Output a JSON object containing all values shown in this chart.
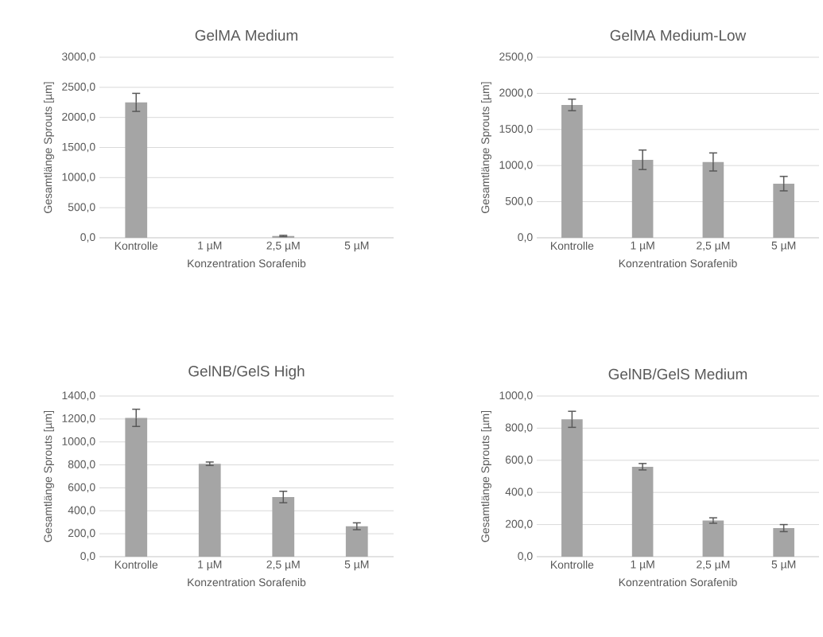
{
  "chart_data": [
    {
      "type": "bar",
      "title": "GelMA Medium",
      "xlabel": "Konzentration Sorafenib",
      "ylabel": "Gesamtlänge Sprouts [µm]",
      "categories": [
        "Kontrolle",
        "1 µM",
        "2,5 µM",
        "5 µM"
      ],
      "values": [
        2250,
        0,
        30,
        0
      ],
      "errors": [
        150,
        null,
        10,
        null
      ],
      "color": "#a5a5a5",
      "ylim": [
        0,
        3000
      ],
      "yticks": [
        {
          "value": 0,
          "label": "0,0"
        },
        {
          "value": 500,
          "label": "500,0"
        },
        {
          "value": 1000,
          "label": "1000,0"
        },
        {
          "value": 1500,
          "label": "1500,0"
        },
        {
          "value": 2000,
          "label": "2000,0"
        },
        {
          "value": 2500,
          "label": "2500,0"
        },
        {
          "value": 3000,
          "label": "3000,0"
        }
      ],
      "grid": "y"
    },
    {
      "type": "bar",
      "title": "GelMA Medium-Low",
      "xlabel": "Konzentration Sorafenib",
      "ylabel": "Gesamtlänge Sprouts [µm]",
      "categories": [
        "Kontrolle",
        "1 µM",
        "2,5 µM",
        "5 µM"
      ],
      "values": [
        1840,
        1080,
        1050,
        750
      ],
      "errors": [
        80,
        135,
        125,
        100
      ],
      "color": "#a5a5a5",
      "ylim": [
        0,
        2500
      ],
      "yticks": [
        {
          "value": 0,
          "label": "0,0"
        },
        {
          "value": 500,
          "label": "500,0"
        },
        {
          "value": 1000,
          "label": "1000,0"
        },
        {
          "value": 1500,
          "label": "1500,0"
        },
        {
          "value": 2000,
          "label": "2000,0"
        },
        {
          "value": 2500,
          "label": "2500,0"
        }
      ],
      "grid": "y"
    },
    {
      "type": "bar",
      "title": "GelNB/GelS High",
      "xlabel": "Konzentration Sorafenib",
      "ylabel": "Gesamtlänge Sprouts [µm]",
      "categories": [
        "Kontrolle",
        "1 µM",
        "2,5 µM",
        "5 µM"
      ],
      "values": [
        1210,
        810,
        520,
        265
      ],
      "errors": [
        75,
        15,
        50,
        30
      ],
      "color": "#a5a5a5",
      "ylim": [
        0,
        1400
      ],
      "yticks": [
        {
          "value": 0,
          "label": "0,0"
        },
        {
          "value": 200,
          "label": "200,0"
        },
        {
          "value": 400,
          "label": "400,0"
        },
        {
          "value": 600,
          "label": "600,0"
        },
        {
          "value": 800,
          "label": "800,0"
        },
        {
          "value": 1000,
          "label": "1000,0"
        },
        {
          "value": 1200,
          "label": "1200,0"
        },
        {
          "value": 1400,
          "label": "1400,0"
        }
      ],
      "grid": "y"
    },
    {
      "type": "bar",
      "title": "GelNB/GelS Medium",
      "xlabel": "Konzentration Sorafenib",
      "ylabel": "Gesamtlänge Sprouts [µm]",
      "categories": [
        "Kontrolle",
        "1 µM",
        "2,5 µM",
        "5 µM"
      ],
      "values": [
        855,
        560,
        225,
        178
      ],
      "errors": [
        50,
        20,
        17,
        22
      ],
      "color": "#a5a5a5",
      "ylim": [
        0,
        1000
      ],
      "yticks": [
        {
          "value": 0,
          "label": "0,0"
        },
        {
          "value": 200,
          "label": "200,0"
        },
        {
          "value": 400,
          "label": "400,0"
        },
        {
          "value": 600,
          "label": "600,0"
        },
        {
          "value": 800,
          "label": "800,0"
        },
        {
          "value": 1000,
          "label": "1000,0"
        }
      ],
      "grid": "y"
    }
  ]
}
